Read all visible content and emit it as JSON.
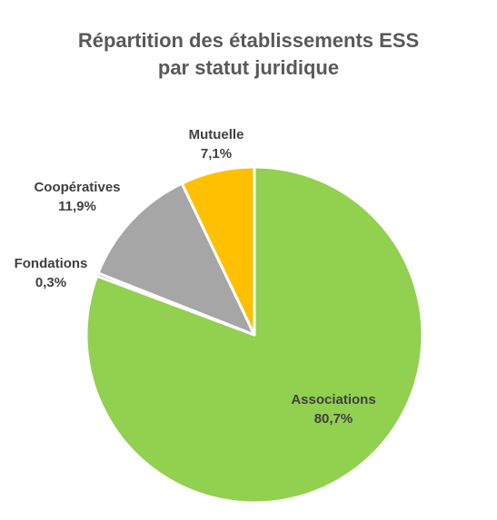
{
  "title_line1": "Répartition des établissements ESS",
  "title_line2": "par statut juridique",
  "chart_data": {
    "type": "pie",
    "title": "Répartition des établissements ESS par statut juridique",
    "start": "12 o'clock, clockwise",
    "legend": "none (data labels beside slices)",
    "slices": [
      {
        "label": "Associations",
        "value": 80.7,
        "value_label": "80,7%",
        "color": "#92D050"
      },
      {
        "label": "Fondations",
        "value": 0.3,
        "value_label": "0,3%",
        "color": "#7F7F7F"
      },
      {
        "label": "Coopératives",
        "value": 11.9,
        "value_label": "11,9%",
        "color": "#A6A6A6"
      },
      {
        "label": "Mutuelle",
        "value": 7.1,
        "value_label": "7,1%",
        "color": "#FFC000"
      }
    ]
  }
}
